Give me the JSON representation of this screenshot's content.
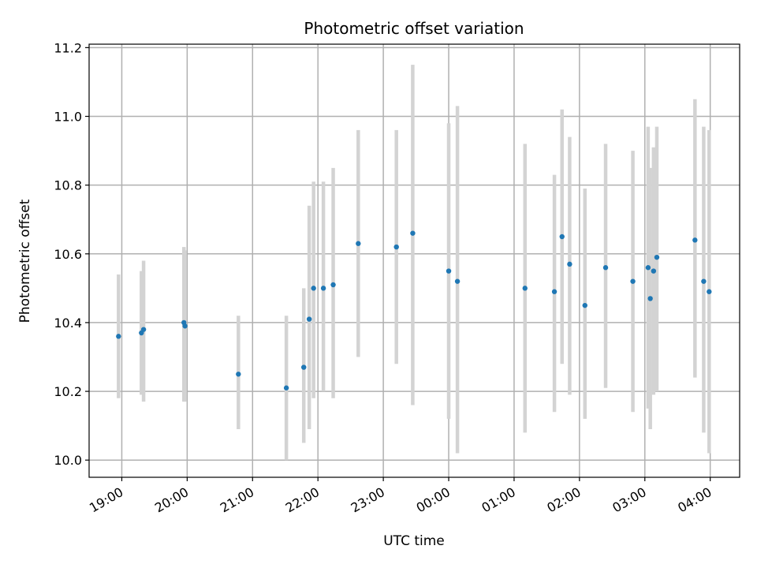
{
  "chart_data": {
    "type": "scatter",
    "title": "Photometric offset variation",
    "xlabel": "UTC time",
    "ylabel": "Photometric offset",
    "x_tick_labels": [
      "19:00",
      "20:00",
      "21:00",
      "22:00",
      "23:00",
      "00:00",
      "01:00",
      "02:00",
      "03:00",
      "04:00"
    ],
    "y_ticks": [
      10.0,
      10.2,
      10.4,
      10.6,
      10.8,
      11.0,
      11.2
    ],
    "y_tick_labels": [
      "10.0",
      "10.2",
      "10.4",
      "10.6",
      "10.8",
      "11.0",
      "11.2"
    ],
    "ylim": [
      9.95,
      11.21
    ],
    "xlim": [
      "18:30",
      "04:27"
    ],
    "grid": true,
    "colors": {
      "points": "#1f77b4",
      "errorbars": "#d3d3d3",
      "grid": "#b0b0b0"
    },
    "series": [
      {
        "points": [
          {
            "x": "18:57",
            "y": 10.36,
            "yerr_low": 10.18,
            "yerr_high": 10.54
          },
          {
            "x": "19:18",
            "y": 10.37,
            "yerr_low": 10.19,
            "yerr_high": 10.55
          },
          {
            "x": "19:20",
            "y": 10.38,
            "yerr_low": 10.17,
            "yerr_high": 10.58
          },
          {
            "x": "19:57",
            "y": 10.4,
            "yerr_low": 10.17,
            "yerr_high": 10.62
          },
          {
            "x": "19:58",
            "y": 10.39,
            "yerr_low": 10.17,
            "yerr_high": 10.61
          },
          {
            "x": "20:47",
            "y": 10.25,
            "yerr_low": 10.09,
            "yerr_high": 10.42
          },
          {
            "x": "21:31",
            "y": 10.21,
            "yerr_low": 10.0,
            "yerr_high": 10.42
          },
          {
            "x": "21:47",
            "y": 10.27,
            "yerr_low": 10.05,
            "yerr_high": 10.5
          },
          {
            "x": "21:52",
            "y": 10.41,
            "yerr_low": 10.09,
            "yerr_high": 10.74
          },
          {
            "x": "21:56",
            "y": 10.5,
            "yerr_low": 10.18,
            "yerr_high": 10.81
          },
          {
            "x": "22:05",
            "y": 10.5,
            "yerr_low": 10.2,
            "yerr_high": 10.81
          },
          {
            "x": "22:14",
            "y": 10.51,
            "yerr_low": 10.18,
            "yerr_high": 10.85
          },
          {
            "x": "22:37",
            "y": 10.63,
            "yerr_low": 10.3,
            "yerr_high": 10.96
          },
          {
            "x": "23:12",
            "y": 10.62,
            "yerr_low": 10.28,
            "yerr_high": 10.96
          },
          {
            "x": "23:27",
            "y": 10.66,
            "yerr_low": 10.16,
            "yerr_high": 11.15
          },
          {
            "x": "00:00",
            "y": 10.55,
            "yerr_low": 10.12,
            "yerr_high": 10.98
          },
          {
            "x": "00:08",
            "y": 10.52,
            "yerr_low": 10.02,
            "yerr_high": 11.03
          },
          {
            "x": "01:10",
            "y": 10.5,
            "yerr_low": 10.08,
            "yerr_high": 10.92
          },
          {
            "x": "01:37",
            "y": 10.49,
            "yerr_low": 10.14,
            "yerr_high": 10.83
          },
          {
            "x": "01:44",
            "y": 10.65,
            "yerr_low": 10.28,
            "yerr_high": 11.02
          },
          {
            "x": "01:51",
            "y": 10.57,
            "yerr_low": 10.19,
            "yerr_high": 10.94
          },
          {
            "x": "02:05",
            "y": 10.45,
            "yerr_low": 10.12,
            "yerr_high": 10.79
          },
          {
            "x": "02:24",
            "y": 10.56,
            "yerr_low": 10.21,
            "yerr_high": 10.92
          },
          {
            "x": "02:49",
            "y": 10.52,
            "yerr_low": 10.14,
            "yerr_high": 10.9
          },
          {
            "x": "03:03",
            "y": 10.56,
            "yerr_low": 10.15,
            "yerr_high": 10.97
          },
          {
            "x": "03:05",
            "y": 10.47,
            "yerr_low": 10.09,
            "yerr_high": 10.85
          },
          {
            "x": "03:08",
            "y": 10.55,
            "yerr_low": 10.19,
            "yerr_high": 10.91
          },
          {
            "x": "03:11",
            "y": 10.59,
            "yerr_low": 10.2,
            "yerr_high": 10.97
          },
          {
            "x": "03:46",
            "y": 10.64,
            "yerr_low": 10.24,
            "yerr_high": 11.05
          },
          {
            "x": "03:54",
            "y": 10.52,
            "yerr_low": 10.08,
            "yerr_high": 10.97
          },
          {
            "x": "03:59",
            "y": 10.49,
            "yerr_low": 10.02,
            "yerr_high": 10.96
          }
        ]
      }
    ]
  }
}
